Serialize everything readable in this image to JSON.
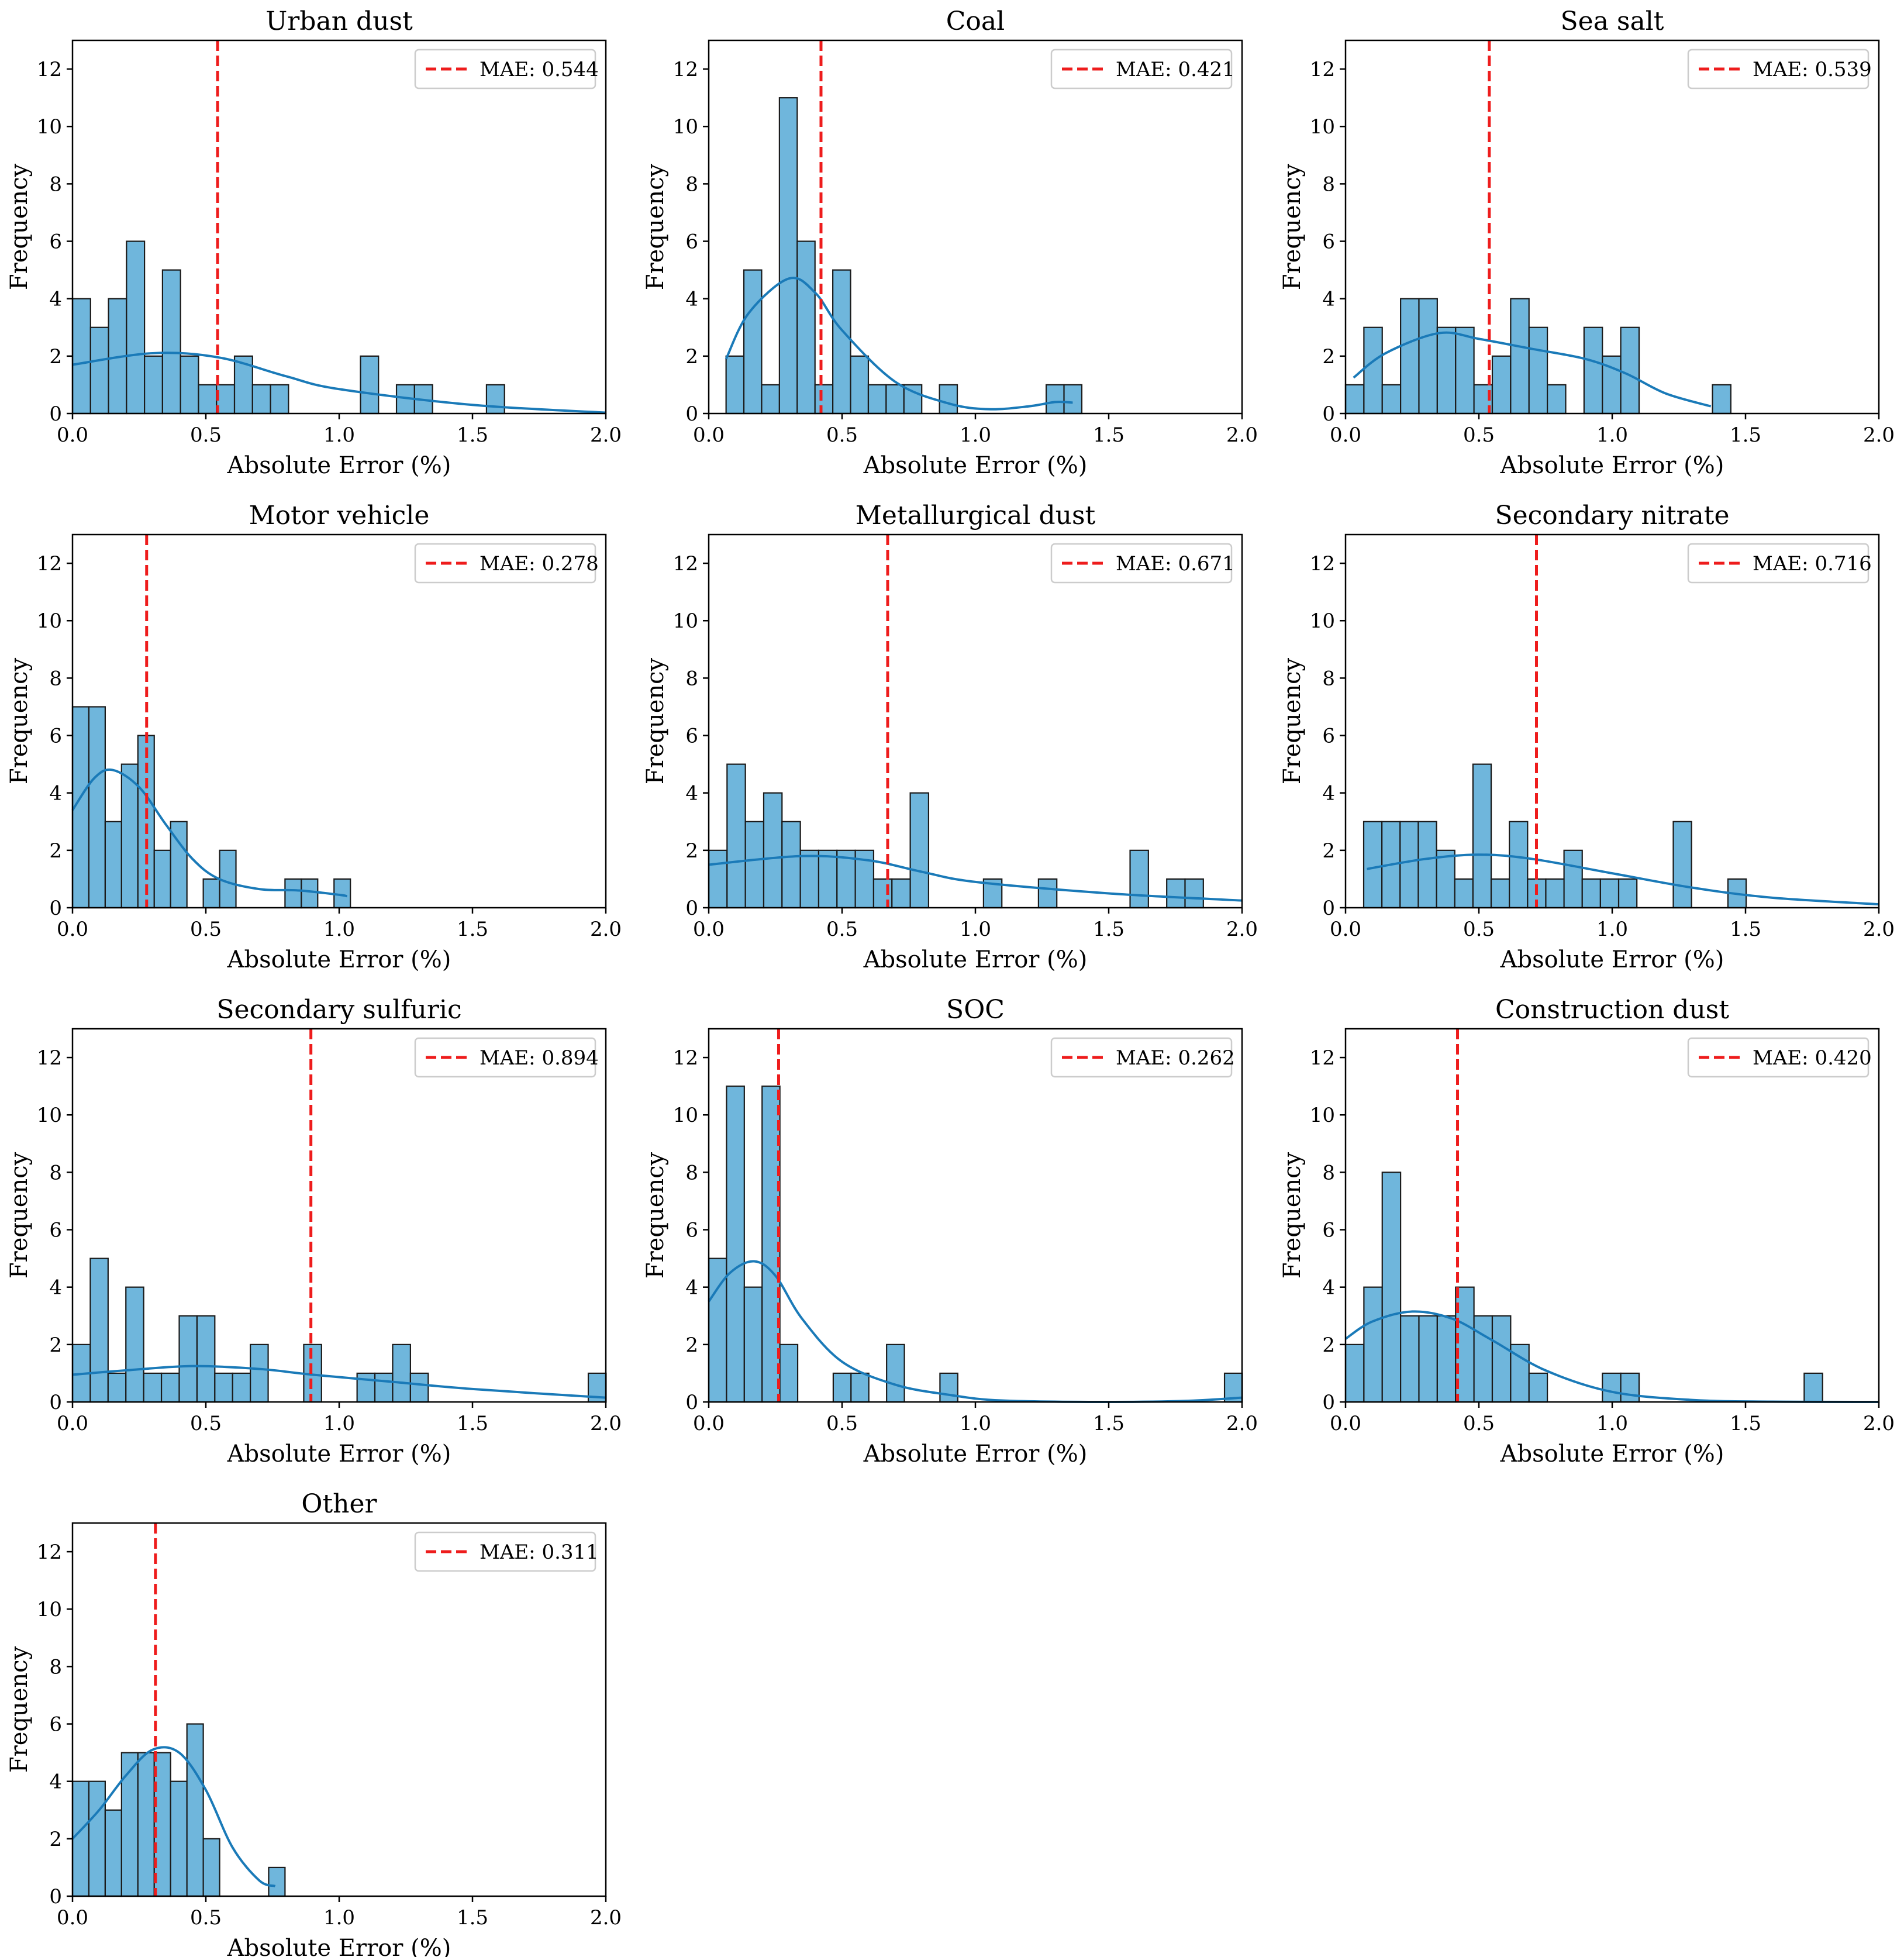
{
  "chart_data": [
    {
      "type": "bar",
      "title": "Urban dust",
      "xlabel": "Absolute Error (%)",
      "ylabel": "Frequency",
      "xlim": [
        0,
        2
      ],
      "ylim": [
        0,
        13
      ],
      "xticks": [
        "0.0",
        "0.5",
        "1.0",
        "1.5",
        "2.0"
      ],
      "yticks": [
        "0",
        "2",
        "4",
        "6",
        "8",
        "10",
        "12"
      ],
      "bin_start": 0.0,
      "bin_width": 0.0675,
      "counts": [
        4,
        3,
        4,
        6,
        2,
        5,
        2,
        1,
        1,
        2,
        1,
        1,
        0,
        0,
        0,
        0,
        2,
        0,
        1,
        1,
        0,
        0,
        0,
        1
      ],
      "mae": 0.544,
      "mae_label": "MAE: 0.544",
      "kde": {
        "x": [
          0.0,
          0.3,
          0.55,
          0.8,
          1.0,
          1.5,
          2.0
        ],
        "y": [
          1.7,
          2.1,
          1.95,
          1.3,
          0.85,
          0.3,
          0.03
        ]
      }
    },
    {
      "type": "bar",
      "title": "Coal",
      "xlabel": "Absolute Error (%)",
      "ylabel": "Frequency",
      "xlim": [
        0,
        2
      ],
      "ylim": [
        0,
        13
      ],
      "xticks": [
        "0.0",
        "0.5",
        "1.0",
        "1.5",
        "2.0"
      ],
      "yticks": [
        "0",
        "2",
        "4",
        "6",
        "8",
        "10",
        "12"
      ],
      "bin_start": 0.065,
      "bin_width": 0.0667,
      "counts": [
        2,
        5,
        1,
        11,
        6,
        1,
        5,
        2,
        1,
        1,
        1,
        0,
        1,
        0,
        0,
        0,
        0,
        0,
        1,
        1
      ],
      "mae": 0.421,
      "mae_label": "MAE: 0.421",
      "kde": {
        "x": [
          0.065,
          0.15,
          0.3,
          0.4,
          0.5,
          0.7,
          0.9,
          1.05,
          1.2,
          1.3,
          1.365
        ],
        "y": [
          1.9,
          3.5,
          4.7,
          4.2,
          2.9,
          1.1,
          0.35,
          0.15,
          0.25,
          0.4,
          0.38
        ]
      }
    },
    {
      "type": "bar",
      "title": "Sea salt",
      "xlabel": "Absolute Error (%)",
      "ylabel": "Frequency",
      "xlim": [
        0,
        2
      ],
      "ylim": [
        0,
        13
      ],
      "xticks": [
        "0.0",
        "0.5",
        "1.0",
        "1.5",
        "2.0"
      ],
      "yticks": [
        "0",
        "2",
        "4",
        "6",
        "8",
        "10",
        "12"
      ],
      "bin_start": 0.0,
      "bin_width": 0.0688,
      "counts": [
        1,
        3,
        1,
        4,
        4,
        3,
        3,
        1,
        2,
        4,
        3,
        1,
        0,
        3,
        2,
        3,
        0,
        0,
        0,
        0,
        1
      ],
      "mae": 0.539,
      "mae_label": "MAE: 0.539",
      "kde": {
        "x": [
          0.03,
          0.15,
          0.35,
          0.5,
          0.7,
          0.9,
          1.05,
          1.2,
          1.37
        ],
        "y": [
          1.25,
          2.1,
          2.8,
          2.6,
          2.25,
          1.9,
          1.4,
          0.7,
          0.25
        ]
      }
    },
    {
      "type": "bar",
      "title": "Motor vehicle",
      "xlabel": "Absolute Error (%)",
      "ylabel": "Frequency",
      "xlim": [
        0,
        2
      ],
      "ylim": [
        0,
        13
      ],
      "xticks": [
        "0.0",
        "0.5",
        "1.0",
        "1.5",
        "2.0"
      ],
      "yticks": [
        "0",
        "2",
        "4",
        "6",
        "8",
        "10",
        "12"
      ],
      "bin_start": 0.0,
      "bin_width": 0.0613,
      "counts": [
        7,
        7,
        3,
        5,
        6,
        2,
        3,
        0,
        1,
        2,
        0,
        0,
        0,
        1,
        1,
        0,
        1
      ],
      "mae": 0.278,
      "mae_label": "MAE: 0.278",
      "kde": {
        "x": [
          0.0,
          0.08,
          0.15,
          0.25,
          0.35,
          0.45,
          0.55,
          0.7,
          0.85,
          1.0,
          1.03
        ],
        "y": [
          3.4,
          4.5,
          4.8,
          4.2,
          2.9,
          1.7,
          1.0,
          0.65,
          0.6,
          0.45,
          0.4
        ]
      }
    },
    {
      "type": "bar",
      "title": "Metallurgical dust",
      "xlabel": "Absolute Error (%)",
      "ylabel": "Frequency",
      "xlim": [
        0,
        2
      ],
      "ylim": [
        0,
        13
      ],
      "xticks": [
        "0.0",
        "0.5",
        "1.0",
        "1.5",
        "2.0"
      ],
      "yticks": [
        "0",
        "2",
        "4",
        "6",
        "8",
        "10",
        "12"
      ],
      "bin_start": 0.0,
      "bin_width": 0.0687,
      "counts": [
        2,
        5,
        3,
        4,
        3,
        2,
        2,
        2,
        2,
        1,
        1,
        4,
        0,
        0,
        0,
        1,
        0,
        0,
        1,
        0,
        0,
        0,
        0,
        2,
        0,
        1,
        1
      ],
      "mae": 0.671,
      "mae_label": "MAE: 0.671",
      "kde": {
        "x": [
          0.0,
          0.35,
          0.6,
          0.8,
          1.0,
          1.5,
          2.0
        ],
        "y": [
          1.5,
          1.8,
          1.65,
          1.25,
          0.9,
          0.5,
          0.25
        ]
      }
    },
    {
      "type": "bar",
      "title": "Secondary nitrate",
      "xlabel": "Absolute Error (%)",
      "ylabel": "Frequency",
      "xlim": [
        0,
        2
      ],
      "ylim": [
        0,
        13
      ],
      "xticks": [
        "0.0",
        "0.5",
        "1.0",
        "1.5",
        "2.0"
      ],
      "yticks": [
        "0",
        "2",
        "4",
        "6",
        "8",
        "10",
        "12"
      ],
      "bin_start": 0.068,
      "bin_width": 0.0683,
      "counts": [
        3,
        3,
        3,
        3,
        2,
        1,
        5,
        1,
        3,
        1,
        1,
        2,
        1,
        1,
        1,
        0,
        0,
        3,
        0,
        0,
        1
      ],
      "mae": 0.716,
      "mae_label": "MAE: 0.716",
      "kde": {
        "x": [
          0.08,
          0.3,
          0.5,
          0.7,
          1.0,
          1.3,
          1.6,
          2.0
        ],
        "y": [
          1.35,
          1.7,
          1.85,
          1.7,
          1.2,
          0.7,
          0.35,
          0.12
        ]
      }
    },
    {
      "type": "bar",
      "title": "Secondary sulfuric",
      "xlabel": "Absolute Error (%)",
      "ylabel": "Frequency",
      "xlim": [
        0,
        2
      ],
      "ylim": [
        0,
        13
      ],
      "xticks": [
        "0.0",
        "0.5",
        "1.0",
        "1.5",
        "2.0"
      ],
      "yticks": [
        "0",
        "2",
        "4",
        "6",
        "8",
        "10",
        "12"
      ],
      "bin_start": 0.0,
      "bin_width": 0.0667,
      "counts": [
        2,
        5,
        1,
        4,
        1,
        1,
        3,
        3,
        1,
        1,
        2,
        0,
        0,
        2,
        0,
        0,
        1,
        1,
        2,
        1,
        0,
        0,
        0,
        0,
        0,
        0,
        0,
        0,
        0,
        1
      ],
      "mae": 0.894,
      "mae_label": "MAE: 0.894",
      "kde": {
        "x": [
          0.0,
          0.2,
          0.45,
          0.7,
          0.9,
          1.2,
          1.5,
          2.0
        ],
        "y": [
          0.95,
          1.1,
          1.25,
          1.15,
          0.95,
          0.7,
          0.45,
          0.15
        ]
      }
    },
    {
      "type": "bar",
      "title": "SOC",
      "xlabel": "Absolute Error (%)",
      "ylabel": "Frequency",
      "xlim": [
        0,
        2
      ],
      "ylim": [
        0,
        13
      ],
      "xticks": [
        "0.0",
        "0.5",
        "1.0",
        "1.5",
        "2.0"
      ],
      "yticks": [
        "0",
        "2",
        "4",
        "6",
        "8",
        "10",
        "12"
      ],
      "bin_start": 0.0,
      "bin_width": 0.0667,
      "counts": [
        5,
        11,
        4,
        11,
        2,
        0,
        0,
        1,
        1,
        0,
        2,
        0,
        0,
        1,
        0,
        0,
        0,
        0,
        0,
        0,
        0,
        0,
        0,
        0,
        0,
        0,
        0,
        0,
        0,
        1
      ],
      "mae": 0.262,
      "mae_label": "MAE: 0.262",
      "kde": {
        "x": [
          0.0,
          0.08,
          0.17,
          0.25,
          0.35,
          0.5,
          0.7,
          0.9,
          1.1,
          1.5,
          1.8,
          2.0
        ],
        "y": [
          3.5,
          4.5,
          4.9,
          4.4,
          2.9,
          1.4,
          0.6,
          0.25,
          0.05,
          0.0,
          0.04,
          0.15
        ]
      }
    },
    {
      "type": "bar",
      "title": "Construction dust",
      "xlabel": "Absolute Error (%)",
      "ylabel": "Frequency",
      "xlim": [
        0,
        2
      ],
      "ylim": [
        0,
        13
      ],
      "xticks": [
        "0.0",
        "0.5",
        "1.0",
        "1.5",
        "2.0"
      ],
      "yticks": [
        "0",
        "2",
        "4",
        "6",
        "8",
        "10",
        "12"
      ],
      "bin_start": 0.0,
      "bin_width": 0.0688,
      "counts": [
        2,
        4,
        8,
        3,
        3,
        3,
        4,
        3,
        3,
        2,
        1,
        0,
        0,
        0,
        1,
        1,
        0,
        0,
        0,
        0,
        0,
        0,
        0,
        0,
        0,
        1
      ],
      "mae": 0.42,
      "mae_label": "MAE: 0.420",
      "kde": {
        "x": [
          0.0,
          0.1,
          0.25,
          0.4,
          0.55,
          0.75,
          1.0,
          1.3,
          1.6,
          2.0
        ],
        "y": [
          2.2,
          2.8,
          3.15,
          2.9,
          2.15,
          1.1,
          0.35,
          0.07,
          0.01,
          0.0
        ]
      }
    },
    {
      "type": "bar",
      "title": "Other",
      "xlabel": "Absolute Error (%)",
      "ylabel": "Frequency",
      "xlim": [
        0,
        2
      ],
      "ylim": [
        0,
        13
      ],
      "xticks": [
        "0.0",
        "0.5",
        "1.0",
        "1.5",
        "2.0"
      ],
      "yticks": [
        "0",
        "2",
        "4",
        "6",
        "8",
        "10",
        "12"
      ],
      "bin_start": 0.0,
      "bin_width": 0.0613,
      "counts": [
        4,
        4,
        3,
        5,
        5,
        5,
        4,
        6,
        2,
        0,
        0,
        0,
        1
      ],
      "mae": 0.311,
      "mae_label": "MAE: 0.311",
      "kde": {
        "x": [
          0.0,
          0.1,
          0.2,
          0.3,
          0.4,
          0.5,
          0.6,
          0.7,
          0.76
        ],
        "y": [
          2.0,
          3.0,
          4.2,
          5.1,
          5.0,
          3.7,
          1.7,
          0.55,
          0.35
        ]
      }
    }
  ],
  "colors": {
    "bar_fill": "#6fb6dc",
    "bar_edge": "#1b1b1b",
    "kde_line": "#1a7ab8",
    "mae_line": "#ee1c1c",
    "axis": "#000000"
  }
}
